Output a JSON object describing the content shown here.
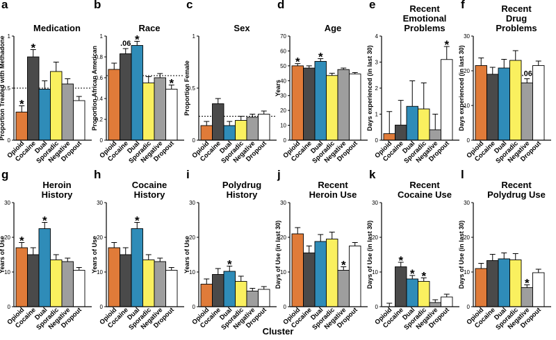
{
  "x_axis_title": "Cluster",
  "colors": [
    "#E07B39",
    "#4A4A4A",
    "#2F8CB8",
    "#FAF05F",
    "#9E9E9E",
    "#FFFFFF"
  ],
  "chart_data": [
    {
      "label": "a",
      "title": [
        "Medication"
      ],
      "type": "bar",
      "ylabel": "Proportion Treated with Methadone",
      "ylim": [
        0,
        1
      ],
      "yticks": [
        0,
        0.5,
        1
      ],
      "ytick_labels": [
        "0",
        "0.5",
        "1"
      ],
      "categories": [
        "Opioid",
        "Cocaine",
        "Dual",
        "Sporadic",
        "Negative",
        "Dropout"
      ],
      "values": [
        0.27,
        0.8,
        0.49,
        0.66,
        0.54,
        0.38
      ],
      "errors": [
        0.06,
        0.07,
        0.08,
        0.09,
        0.05,
        0.04
      ],
      "reference_line": 0.5,
      "annotations": [
        {
          "index": 0,
          "text": "*"
        },
        {
          "index": 1,
          "text": "*"
        }
      ]
    },
    {
      "label": "b",
      "title": [
        "Race"
      ],
      "type": "bar",
      "ylabel": "Proportion African American",
      "ylim": [
        0,
        1
      ],
      "yticks": [
        0,
        0.2,
        0.4,
        0.6,
        0.8,
        1
      ],
      "ytick_labels": [
        "0",
        "0.2",
        "0.4",
        "0.6",
        "0.8",
        "1"
      ],
      "categories": [
        "Opioid",
        "Cocaine",
        "Dual",
        "Sporadic",
        "Negative",
        "Dropout"
      ],
      "values": [
        0.68,
        0.83,
        0.91,
        0.55,
        0.6,
        0.49
      ],
      "errors": [
        0.06,
        0.05,
        0.04,
        0.06,
        0.04,
        0.04
      ],
      "reference_line": 0.62,
      "annotations": [
        {
          "index": 1,
          "text": ".06"
        },
        {
          "index": 2,
          "text": "*"
        },
        {
          "index": 5,
          "text": "*"
        }
      ]
    },
    {
      "label": "c",
      "title": [
        "Sex"
      ],
      "type": "bar",
      "ylabel": "Proportion Female",
      "ylim": [
        0,
        1
      ],
      "yticks": [
        0,
        0.5,
        1
      ],
      "ytick_labels": [
        "0",
        "0.5",
        "1"
      ],
      "categories": [
        "Opioid",
        "Cocaine",
        "Dual",
        "Sporadic",
        "Negative",
        "Dropout"
      ],
      "values": [
        0.14,
        0.35,
        0.14,
        0.19,
        0.22,
        0.25
      ],
      "errors": [
        0.04,
        0.05,
        0.04,
        0.04,
        0.03,
        0.03
      ],
      "reference_line": 0.23,
      "annotations": []
    },
    {
      "label": "d",
      "title": [
        "Age"
      ],
      "type": "bar",
      "ylabel": "Years",
      "ylim": [
        0,
        70
      ],
      "yticks": [
        0,
        10,
        20,
        30,
        40,
        50,
        60,
        70
      ],
      "ytick_labels": [
        "0",
        "10",
        "20",
        "30",
        "40",
        "50",
        "60",
        "70"
      ],
      "categories": [
        "Opioid",
        "Cocaine",
        "Dual",
        "Sporadic",
        "Negative",
        "Dropout"
      ],
      "values": [
        50,
        48.5,
        53,
        43.5,
        47.5,
        44.5
      ],
      "errors": [
        1.5,
        1.5,
        1.8,
        1.5,
        1.0,
        1.0
      ],
      "reference_line": null,
      "annotations": [
        {
          "index": 0,
          "text": "*"
        },
        {
          "index": 2,
          "text": "*"
        }
      ]
    },
    {
      "label": "e",
      "title": [
        "Recent",
        "Emotional",
        "Problems"
      ],
      "type": "bar",
      "ylabel": "Days experienced (in last 30)",
      "ylim": [
        0,
        4
      ],
      "yticks": [
        0,
        1,
        2,
        3,
        4
      ],
      "ytick_labels": [
        "0",
        "1",
        "2",
        "3",
        "4"
      ],
      "categories": [
        "Opioid",
        "Cocaine",
        "Dual",
        "Sporadic",
        "Negative",
        "Dropout"
      ],
      "values": [
        0.25,
        0.58,
        1.3,
        1.2,
        0.4,
        3.1
      ],
      "errors": [
        0.85,
        0.95,
        0.98,
        1.0,
        0.6,
        0.5
      ],
      "reference_line": null,
      "annotations": [
        {
          "index": 5,
          "text": "*"
        }
      ]
    },
    {
      "label": "f",
      "title": [
        "Recent",
        "Drug",
        "Problems"
      ],
      "type": "bar",
      "ylabel": "Days experienced (in last 30)",
      "ylim": [
        0,
        30
      ],
      "yticks": [
        0,
        10,
        20,
        30
      ],
      "ytick_labels": [
        "0",
        "10",
        "20",
        "30"
      ],
      "categories": [
        "Opioid",
        "Cocaine",
        "Dual",
        "Sporadic",
        "Negative",
        "Dropout"
      ],
      "values": [
        21.5,
        19,
        20.8,
        23,
        16.5,
        21.5
      ],
      "errors": [
        2.2,
        2.0,
        2.5,
        2.8,
        1.2,
        1.3
      ],
      "reference_line": null,
      "annotations": [
        {
          "index": 4,
          "text": ".06"
        }
      ]
    },
    {
      "label": "g",
      "title": [
        "Heroin",
        "History"
      ],
      "type": "bar",
      "ylabel": "Years of Use",
      "ylim": [
        0,
        30
      ],
      "yticks": [
        0,
        10,
        20,
        30
      ],
      "ytick_labels": [
        "0",
        "10",
        "20",
        "30"
      ],
      "categories": [
        "Opioid",
        "Cocaine",
        "Dual",
        "Sporadic",
        "Negative",
        "Dropout"
      ],
      "values": [
        17,
        15,
        22.5,
        13.5,
        13,
        10.5
      ],
      "errors": [
        1.5,
        2.0,
        1.8,
        1.5,
        1.0,
        0.8
      ],
      "reference_line": null,
      "annotations": [
        {
          "index": 0,
          "text": "*"
        },
        {
          "index": 2,
          "text": "*"
        }
      ]
    },
    {
      "label": "h",
      "title": [
        "Cocaine",
        "History"
      ],
      "type": "bar",
      "ylabel": "Years of Use",
      "ylim": [
        0,
        30
      ],
      "yticks": [
        0,
        10,
        20,
        30
      ],
      "ytick_labels": [
        "0",
        "10",
        "20",
        "30"
      ],
      "categories": [
        "Opioid",
        "Cocaine",
        "Dual",
        "Sporadic",
        "Negative",
        "Dropout"
      ],
      "values": [
        17,
        15,
        22.5,
        13.5,
        13,
        10.5
      ],
      "errors": [
        1.5,
        2.0,
        1.8,
        1.5,
        1.0,
        0.8
      ],
      "reference_line": null,
      "annotations": [
        {
          "index": 2,
          "text": "*"
        }
      ]
    },
    {
      "label": "i",
      "title": [
        "Polydrug",
        "History"
      ],
      "type": "bar",
      "ylabel": "Years of Use",
      "ylim": [
        0,
        30
      ],
      "yticks": [
        0,
        10,
        20,
        30
      ],
      "ytick_labels": [
        "0",
        "10",
        "20",
        "30"
      ],
      "categories": [
        "Opioid",
        "Cocaine",
        "Dual",
        "Sporadic",
        "Negative",
        "Dropout"
      ],
      "values": [
        6.5,
        9.3,
        10.2,
        7.3,
        4.5,
        5
      ],
      "errors": [
        1.5,
        1.7,
        1.5,
        1.5,
        0.8,
        0.8
      ],
      "reference_line": null,
      "annotations": [
        {
          "index": 2,
          "text": "*"
        }
      ]
    },
    {
      "label": "j",
      "title": [
        "Recent",
        "Heroin Use"
      ],
      "type": "bar",
      "ylabel": "Days of Use (in last 30)",
      "ylim": [
        0,
        30
      ],
      "yticks": [
        0,
        10,
        20,
        30
      ],
      "ytick_labels": [
        "0",
        "10",
        "20",
        "30"
      ],
      "categories": [
        "Opioid",
        "Cocaine",
        "Dual",
        "Sporadic",
        "Negative",
        "Dropout"
      ],
      "values": [
        21,
        15.5,
        18.8,
        19.5,
        10.5,
        17.5
      ],
      "errors": [
        1.8,
        2.0,
        2.0,
        2.0,
        1.0,
        1.0
      ],
      "reference_line": null,
      "annotations": [
        {
          "index": 4,
          "text": "*"
        }
      ]
    },
    {
      "label": "k",
      "title": [
        "Recent",
        "Cocaine Use"
      ],
      "type": "bar",
      "ylabel": "Days of Use (in last 30)",
      "ylim": [
        0,
        30
      ],
      "yticks": [
        0,
        10,
        20,
        30
      ],
      "ytick_labels": [
        "0",
        "10",
        "20",
        "30"
      ],
      "categories": [
        "Opioid",
        "Cocaine",
        "Dual",
        "Sporadic",
        "Negative",
        "Dropout"
      ],
      "values": [
        0,
        11.5,
        8,
        7.3,
        1.2,
        2.8
      ],
      "errors": [
        1.0,
        1.3,
        1.0,
        1.0,
        0.8,
        0.8
      ],
      "reference_line": null,
      "annotations": [
        {
          "index": 1,
          "text": "*"
        },
        {
          "index": 2,
          "text": "*"
        },
        {
          "index": 3,
          "text": "*"
        }
      ]
    },
    {
      "label": "l",
      "title": [
        "Recent",
        "Polydrug Use"
      ],
      "type": "bar",
      "ylabel": "Days of Use (in last 30)",
      "ylim": [
        0,
        30
      ],
      "yticks": [
        0,
        10,
        20,
        30
      ],
      "ytick_labels": [
        "0",
        "10",
        "20",
        "30"
      ],
      "categories": [
        "Opioid",
        "Cocaine",
        "Dual",
        "Sporadic",
        "Negative",
        "Dropout"
      ],
      "values": [
        11,
        13.3,
        13.8,
        13.5,
        5.5,
        9.8
      ],
      "errors": [
        1.5,
        1.8,
        1.7,
        1.8,
        0.8,
        1.0
      ],
      "reference_line": null,
      "annotations": [
        {
          "index": 4,
          "text": "*"
        }
      ]
    }
  ]
}
